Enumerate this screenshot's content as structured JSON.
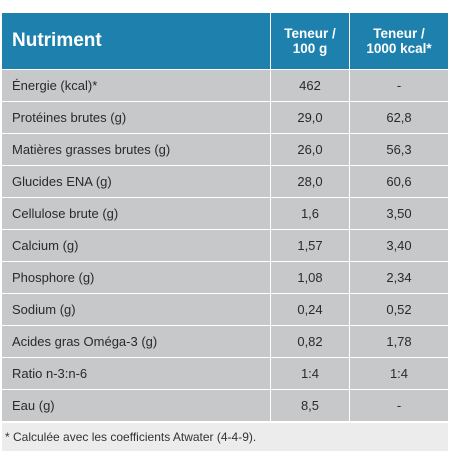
{
  "table": {
    "header": {
      "nutrient": "Nutriment",
      "per100g": "Teneur /\n100 g",
      "per1000kcal": "Teneur /\n1000 kcal*"
    },
    "rows": [
      {
        "label": "Énergie (kcal)*",
        "per100g": "462",
        "per1000kcal": "-"
      },
      {
        "label": "Protéines brutes (g)",
        "per100g": "29,0",
        "per1000kcal": "62,8"
      },
      {
        "label": "Matières grasses brutes (g)",
        "per100g": "26,0",
        "per1000kcal": "56,3"
      },
      {
        "label": "Glucides ENA (g)",
        "per100g": "28,0",
        "per1000kcal": "60,6"
      },
      {
        "label": "Cellulose brute (g)",
        "per100g": "1,6",
        "per1000kcal": "3,50"
      },
      {
        "label": "Calcium (g)",
        "per100g": "1,57",
        "per1000kcal": "3,40"
      },
      {
        "label": "Phosphore (g)",
        "per100g": "1,08",
        "per1000kcal": "2,34"
      },
      {
        "label": "Sodium (g)",
        "per100g": "0,24",
        "per1000kcal": "0,52"
      },
      {
        "label": "Acides gras Oméga-3 (g)",
        "per100g": "0,82",
        "per1000kcal": "1,78"
      },
      {
        "label": "Ratio n-3:n-6",
        "per100g": "1:4",
        "per1000kcal": "1:4"
      },
      {
        "label": "Eau (g)",
        "per100g": "8,5",
        "per1000kcal": "-"
      }
    ],
    "footnote": "* Calculée avec les coefficients Atwater (4-4-9)."
  },
  "colors": {
    "header_bg": "#1e80ad",
    "row_bg": "#c7c8c9",
    "footnote_bg": "#ececec"
  }
}
